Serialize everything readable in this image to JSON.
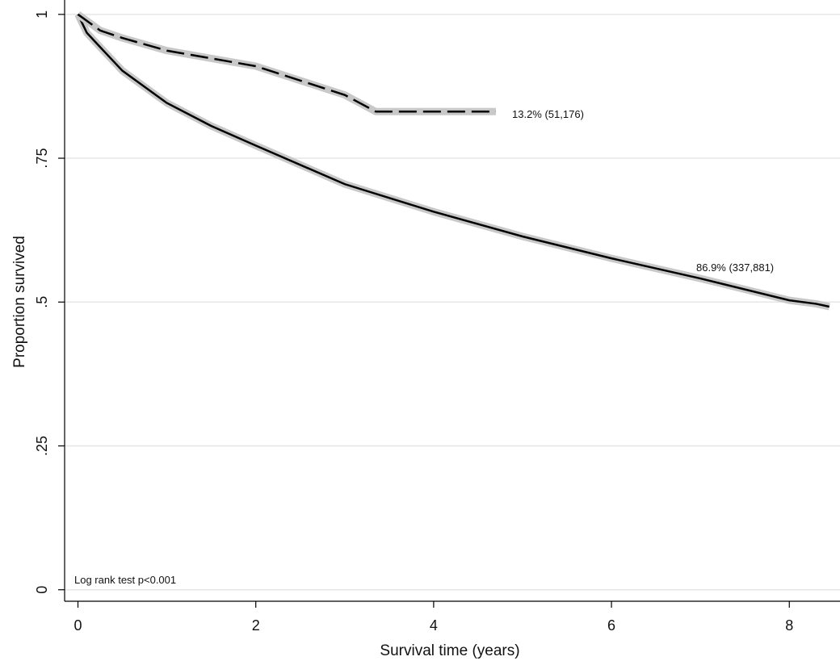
{
  "chart_data": {
    "type": "line",
    "xlabel": "Survival time (years)",
    "ylabel": "Proportion survived",
    "xlim": [
      -0.15,
      8.57
    ],
    "ylim": [
      -0.02,
      1.025
    ],
    "xticks": [
      0,
      2,
      4,
      6,
      8
    ],
    "yticks": [
      0,
      {
        "value": 0.25,
        "label": ".25"
      },
      {
        "value": 0.5,
        "label": ".5"
      },
      {
        "value": 0.75,
        "label": ".75"
      },
      1
    ],
    "grid": true,
    "series": [
      {
        "color": "#000000",
        "linestyle": "solid",
        "x": [
          0,
          0.1,
          0.22,
          0.5,
          1,
          1.5,
          2,
          3,
          4,
          5,
          6,
          7,
          8,
          8.3,
          8.45
        ],
        "values": [
          1,
          0.968,
          0.948,
          0.902,
          0.846,
          0.806,
          0.772,
          0.705,
          0.657,
          0.614,
          0.576,
          0.541,
          0.503,
          0.497,
          0.492
        ]
      },
      {
        "color": "#000000",
        "linestyle": "dashed",
        "x": [
          0,
          0.25,
          0.5,
          1,
          2,
          3,
          3.35,
          4.7
        ],
        "values": [
          1,
          0.972,
          0.959,
          0.937,
          0.91,
          0.86,
          0.831,
          0.831
        ]
      }
    ],
    "annotations": [
      "13.2% (51,176)",
      "86.9% (337,881)",
      "Log rank test p<0.001"
    ]
  }
}
